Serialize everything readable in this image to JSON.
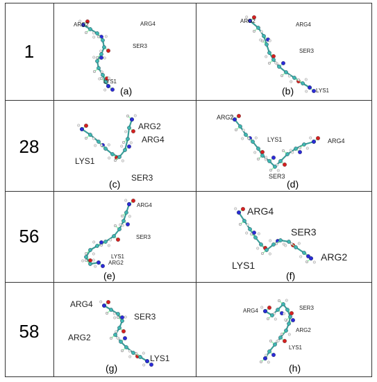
{
  "colors": {
    "carbon": "#3fb8b2",
    "hydrogen": "#e8e8e8",
    "nitrogen": "#2b2bd6",
    "oxygen": "#d42020",
    "bond": "#3a9e99",
    "grid": "#333333"
  },
  "rows": [
    {
      "label": "1"
    },
    {
      "label": "28"
    },
    {
      "label": "56"
    },
    {
      "label": "58"
    }
  ],
  "panels": [
    {
      "caption": "(a)",
      "residues": [
        "ARG2",
        "ARG4",
        "SER3",
        "LYS1"
      ]
    },
    {
      "caption": "(b)",
      "residues": [
        "ARG2",
        "ARG4",
        "SER3",
        "LYS1"
      ]
    },
    {
      "caption": "(c)",
      "residues": [
        "ARG2",
        "ARG4",
        "LYS1",
        "SER3"
      ]
    },
    {
      "caption": "(d)",
      "residues": [
        "ARG2",
        "LYS1",
        "ARG4",
        "SER3"
      ]
    },
    {
      "caption": "(e)",
      "residues": [
        "ARG4",
        "SER3",
        "LYS1",
        "ARG2"
      ]
    },
    {
      "caption": "(f)",
      "residues": [
        "ARG4",
        "SER3",
        "ARG2",
        "LYS1"
      ]
    },
    {
      "caption": "(g)",
      "residues": [
        "ARG4",
        "SER3",
        "ARG2",
        "LYS1"
      ]
    },
    {
      "caption": "(h)",
      "residues": [
        "ARG4",
        "SER3",
        "ARG2",
        "LYS1"
      ]
    }
  ]
}
